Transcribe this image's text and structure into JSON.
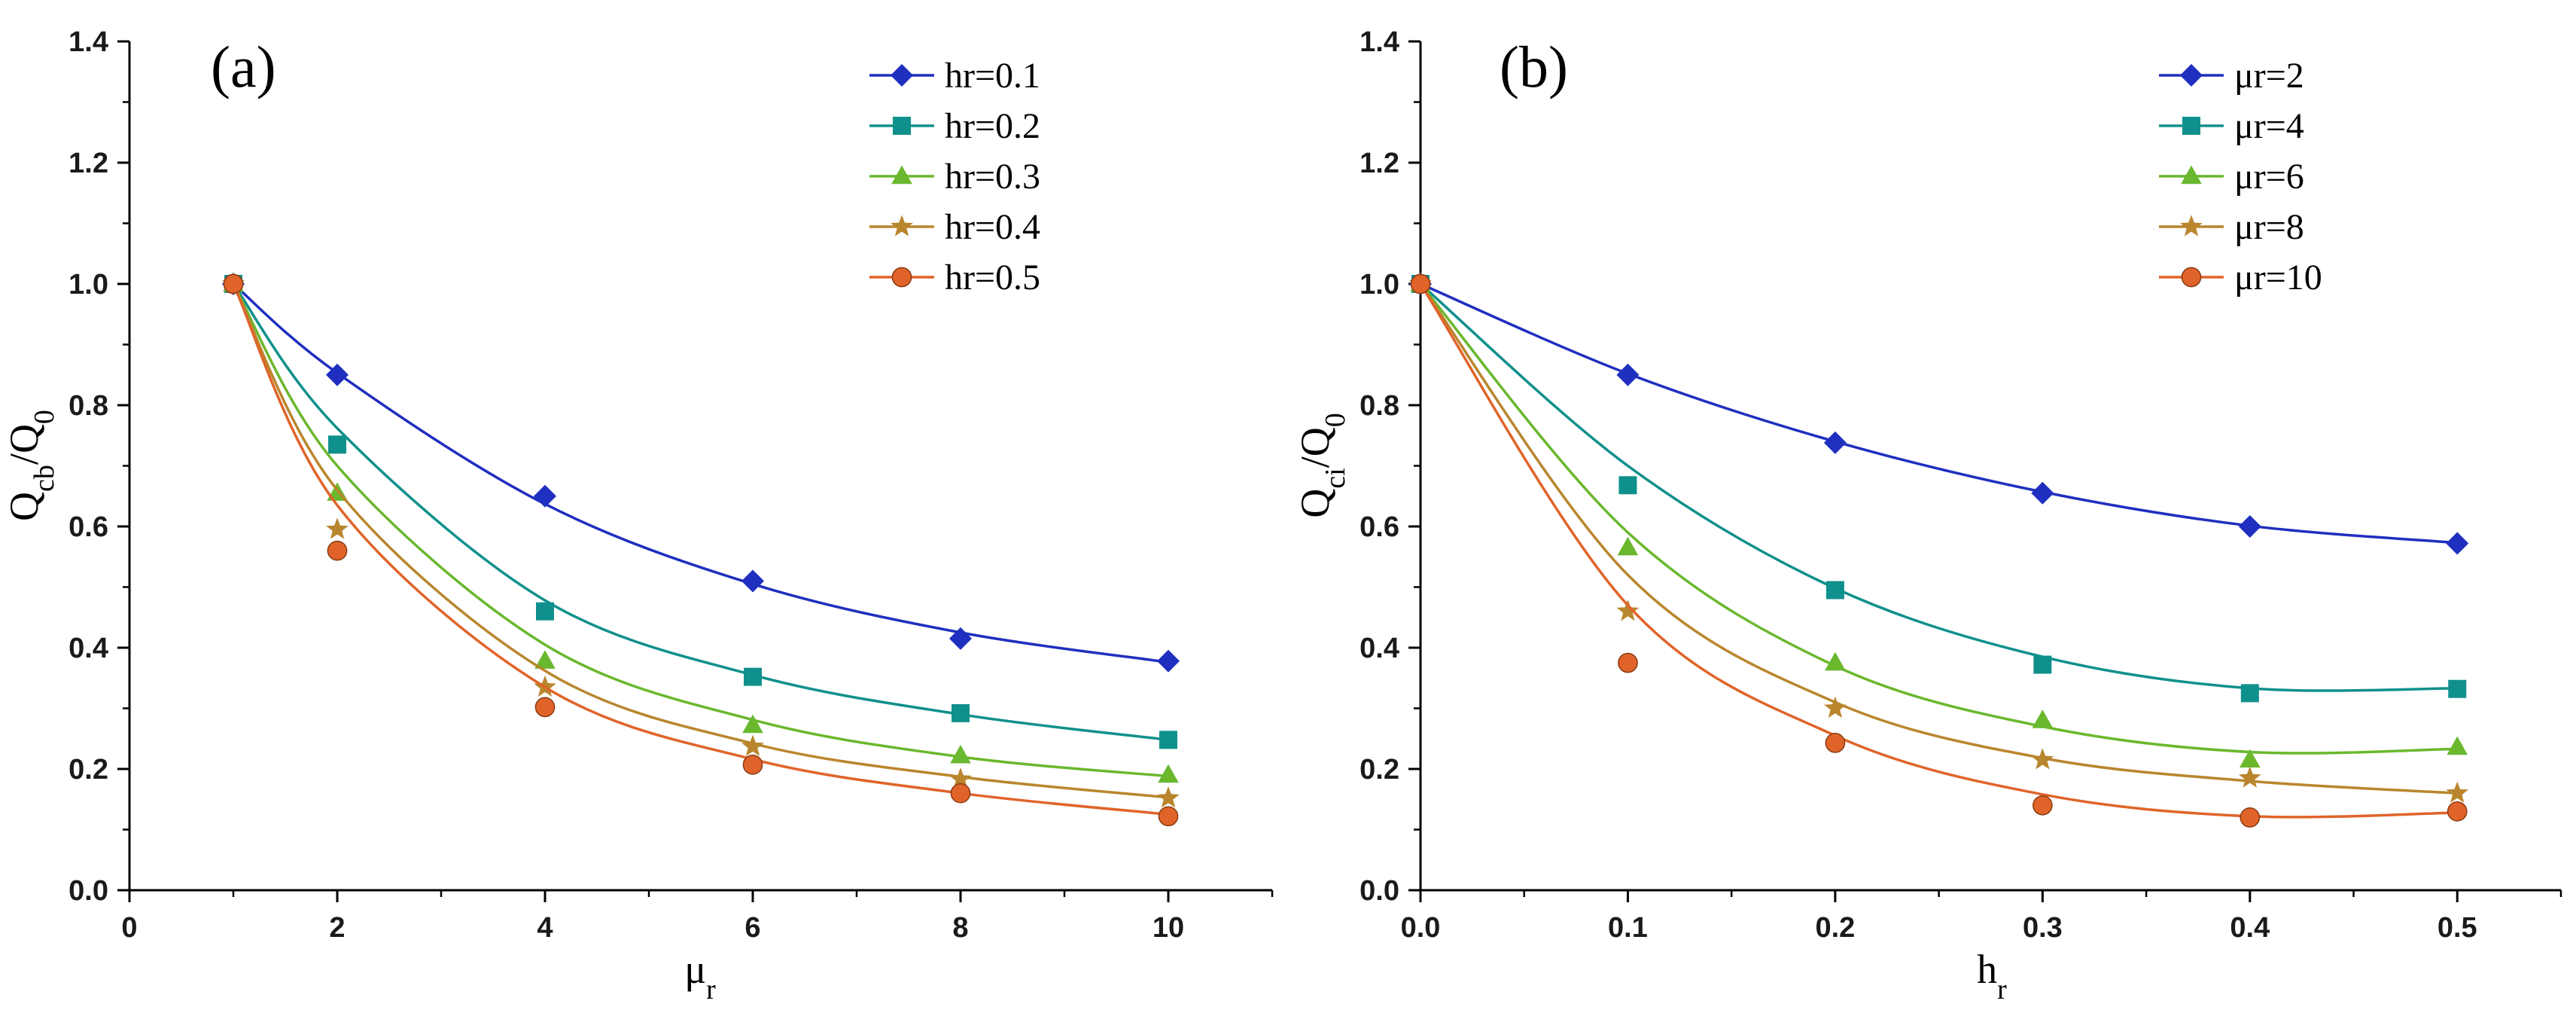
{
  "chart_data": [
    {
      "type": "scatter",
      "panel_label": "(a)",
      "title": "",
      "xlabel": "μr",
      "ylabel": "Qcb/Q0",
      "xlim": [
        0,
        11
      ],
      "ylim": [
        0,
        1.4
      ],
      "xticks": [
        0,
        2,
        4,
        6,
        8,
        10
      ],
      "xtick_labels": [
        "0",
        "2",
        "4",
        "6",
        "8",
        "10"
      ],
      "yticks": [
        0,
        0.2,
        0.4,
        0.6,
        0.8,
        1.0,
        1.2,
        1.4
      ],
      "ytick_labels": [
        "0.0",
        "0.2",
        "0.4",
        "0.6",
        "0.8",
        "1.0",
        "1.2",
        "1.4"
      ],
      "legend_position": "top-right",
      "x": [
        1,
        2,
        4,
        6,
        8,
        10
      ],
      "series": [
        {
          "name": "hr=0.1",
          "color": "#1f2fbf",
          "marker": "diamond",
          "values": [
            1.0,
            0.85,
            0.65,
            0.51,
            0.415,
            0.378
          ],
          "fit": [
            1.0,
            0.853,
            0.637,
            0.505,
            0.425,
            0.376
          ]
        },
        {
          "name": "hr=0.2",
          "color": "#10908c",
          "marker": "square",
          "values": [
            1.0,
            0.735,
            0.46,
            0.352,
            0.292,
            0.248
          ],
          "fit": [
            1.0,
            0.762,
            0.478,
            0.355,
            0.29,
            0.248
          ]
        },
        {
          "name": "hr=0.3",
          "color": "#6ab82e",
          "marker": "triangle",
          "values": [
            1.0,
            0.655,
            0.378,
            0.272,
            0.222,
            0.19
          ],
          "fit": [
            1.0,
            0.7,
            0.405,
            0.281,
            0.22,
            0.188
          ]
        },
        {
          "name": "hr=0.4",
          "color": "#b9862e",
          "marker": "star",
          "values": [
            1.0,
            0.595,
            0.335,
            0.237,
            0.183,
            0.152
          ],
          "fit": [
            1.0,
            0.66,
            0.362,
            0.242,
            0.187,
            0.153
          ]
        },
        {
          "name": "hr=0.5",
          "color": "#e0642a",
          "marker": "circle",
          "values": [
            1.0,
            0.56,
            0.302,
            0.207,
            0.16,
            0.122
          ],
          "fit": [
            1.0,
            0.635,
            0.335,
            0.216,
            0.16,
            0.125
          ]
        }
      ]
    },
    {
      "type": "scatter",
      "panel_label": "(b)",
      "title": "",
      "xlabel": "hr",
      "ylabel": "Qci/Q0",
      "xlim": [
        0,
        0.55
      ],
      "ylim": [
        0,
        1.4
      ],
      "xticks": [
        0,
        0.1,
        0.2,
        0.3,
        0.4,
        0.5
      ],
      "xtick_labels": [
        "0.0",
        "0.1",
        "0.2",
        "0.3",
        "0.4",
        "0.5"
      ],
      "yticks": [
        0,
        0.2,
        0.4,
        0.6,
        0.8,
        1.0,
        1.2,
        1.4
      ],
      "ytick_labels": [
        "0.0",
        "0.2",
        "0.4",
        "0.6",
        "0.8",
        "1.0",
        "1.2",
        "1.4"
      ],
      "legend_position": "top-right",
      "x": [
        0,
        0.1,
        0.2,
        0.3,
        0.4,
        0.5
      ],
      "series": [
        {
          "name": "μr=2",
          "color": "#1f2fbf",
          "marker": "diamond",
          "values": [
            1.0,
            0.85,
            0.738,
            0.655,
            0.6,
            0.572
          ],
          "fit": [
            1.0,
            0.852,
            0.74,
            0.657,
            0.601,
            0.573
          ]
        },
        {
          "name": "μr=4",
          "color": "#10908c",
          "marker": "square",
          "values": [
            1.0,
            0.668,
            0.495,
            0.372,
            0.325,
            0.332
          ],
          "fit": [
            1.0,
            0.7,
            0.498,
            0.385,
            0.333,
            0.333
          ]
        },
        {
          "name": "μr=6",
          "color": "#6ab82e",
          "marker": "triangle",
          "values": [
            1.0,
            0.565,
            0.375,
            0.28,
            0.215,
            0.236
          ],
          "fit": [
            1.0,
            0.59,
            0.37,
            0.27,
            0.228,
            0.233
          ]
        },
        {
          "name": "μr=8",
          "color": "#b9862e",
          "marker": "star",
          "values": [
            1.0,
            0.46,
            0.3,
            0.215,
            0.185,
            0.16
          ],
          "fit": [
            1.0,
            0.52,
            0.31,
            0.218,
            0.18,
            0.16
          ]
        },
        {
          "name": "μr=10",
          "color": "#e0642a",
          "marker": "circle",
          "values": [
            1.0,
            0.375,
            0.243,
            0.14,
            0.12,
            0.13
          ],
          "fit": [
            1.0,
            0.47,
            0.255,
            0.158,
            0.122,
            0.128
          ]
        }
      ]
    }
  ]
}
